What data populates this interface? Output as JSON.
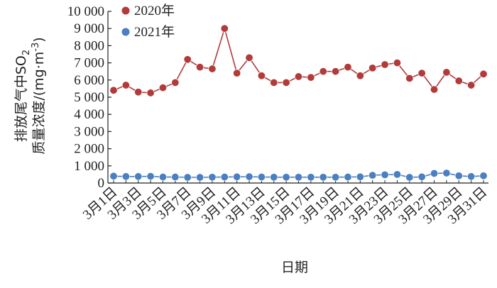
{
  "chart_data": {
    "type": "line",
    "title": "",
    "xlabel": "日期",
    "ylabel": "排放尾气中SO₂质量浓度/(mg·m⁻³)",
    "ylabel_line1": "排放尾气中SO",
    "ylabel_sub": "2",
    "ylabel_line2": "质量浓度/(mg·m",
    "ylabel_sup": "-3",
    "ylabel_tail": ")",
    "ylim": [
      0,
      10000
    ],
    "yticks": [
      0,
      1000,
      2000,
      3000,
      4000,
      5000,
      6000,
      7000,
      8000,
      9000,
      10000
    ],
    "ytick_labels": [
      "0",
      "1 000",
      "2 000",
      "3 000",
      "4 000",
      "5 000",
      "6 000",
      "7 000",
      "8 000",
      "9 000",
      "10 000"
    ],
    "x_count": 31,
    "xtick_labels": [
      "3月1日",
      "3月3日",
      "3月5日",
      "3月7日",
      "3月9日",
      "3月11日",
      "3月13日",
      "3月15日",
      "3月17日",
      "3月19日",
      "3月21日",
      "3月23日",
      "3月25日",
      "3月27日",
      "3月29日",
      "3月31日"
    ],
    "grid": false,
    "legend_position": "top",
    "series": [
      {
        "name": "2020年",
        "color": "#b23a3a",
        "marker": "circle",
        "values": [
          5400,
          5700,
          5300,
          5250,
          5550,
          5850,
          7200,
          6750,
          6650,
          9000,
          6400,
          7300,
          6250,
          5850,
          5850,
          6200,
          6150,
          6500,
          6500,
          6750,
          6250,
          6700,
          6900,
          7000,
          6100,
          6400,
          5450,
          6450,
          5950,
          5700,
          6350
        ]
      },
      {
        "name": "2021年",
        "color": "#4a7fc1",
        "marker": "circle",
        "values": [
          400,
          380,
          380,
          390,
          350,
          350,
          330,
          330,
          340,
          350,
          360,
          370,
          350,
          340,
          340,
          340,
          340,
          340,
          340,
          350,
          360,
          450,
          480,
          500,
          330,
          360,
          560,
          580,
          420,
          380,
          420
        ]
      }
    ]
  }
}
